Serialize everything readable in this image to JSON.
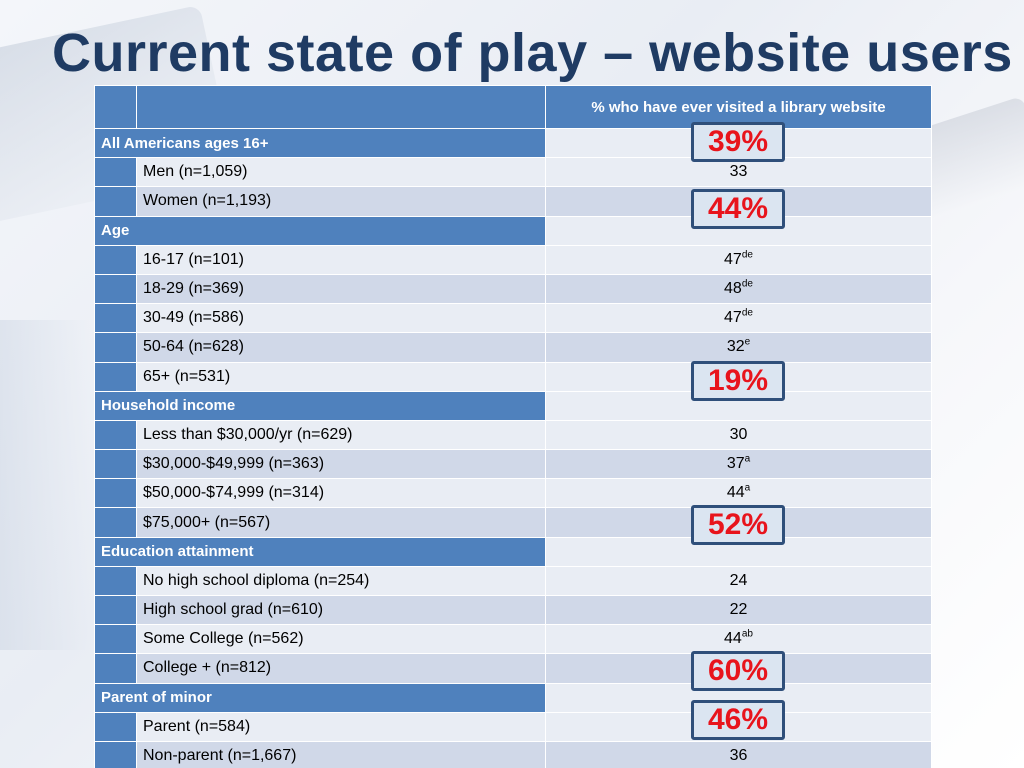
{
  "slide": {
    "title": "Current state of play – website users"
  },
  "table": {
    "column_header": "% who have ever visited a library website",
    "rows": [
      {
        "kind": "category",
        "label": "All Americans ages 16+",
        "value": ""
      },
      {
        "kind": "item",
        "label": "Men (n=1,059)",
        "value": "33",
        "sup": ""
      },
      {
        "kind": "item",
        "label": "Women (n=1,193)",
        "value": "",
        "sup": ""
      },
      {
        "kind": "category",
        "label": "Age",
        "value": ""
      },
      {
        "kind": "item",
        "label": "16-17 (n=101)",
        "value": "47",
        "sup": "de"
      },
      {
        "kind": "item",
        "label": "18-29 (n=369)",
        "value": "48",
        "sup": "de"
      },
      {
        "kind": "item",
        "label": "30-49 (n=586)",
        "value": "47",
        "sup": "de"
      },
      {
        "kind": "item",
        "label": "50-64 (n=628)",
        "value": "32",
        "sup": "e"
      },
      {
        "kind": "item",
        "label": "65+ (n=531)",
        "value": "",
        "sup": ""
      },
      {
        "kind": "category",
        "label": "Household income",
        "value": ""
      },
      {
        "kind": "item",
        "label": "Less than $30,000/yr (n=629)",
        "value": "30",
        "sup": ""
      },
      {
        "kind": "item",
        "label": "$30,000-$49,999 (n=363)",
        "value": "37",
        "sup": "a"
      },
      {
        "kind": "item",
        "label": "$50,000-$74,999 (n=314)",
        "value": "44",
        "sup": "a"
      },
      {
        "kind": "item",
        "label": "$75,000+ (n=567)",
        "value": "",
        "sup": ""
      },
      {
        "kind": "category",
        "label": "Education attainment",
        "value": ""
      },
      {
        "kind": "item",
        "label": "No high school diploma (n=254)",
        "value": "24",
        "sup": ""
      },
      {
        "kind": "item",
        "label": "High school grad (n=610)",
        "value": "22",
        "sup": ""
      },
      {
        "kind": "item",
        "label": "Some College (n=562)",
        "value": "44",
        "sup": "ab"
      },
      {
        "kind": "item",
        "label": "College + (n=812)",
        "value": "",
        "sup": ""
      },
      {
        "kind": "category",
        "label": "Parent of minor",
        "value": ""
      },
      {
        "kind": "item",
        "label": "Parent (n=584)",
        "value": "",
        "sup": ""
      },
      {
        "kind": "item",
        "label": "Non-parent (n=1,667)",
        "value": "36",
        "sup": ""
      }
    ]
  },
  "callouts": [
    {
      "text": "39%"
    },
    {
      "text": "44%"
    },
    {
      "text": "19%"
    },
    {
      "text": "52%"
    },
    {
      "text": "60%"
    },
    {
      "text": "46%"
    }
  ],
  "colors": {
    "title": "#1f3b63",
    "header_fill": "#4f81bd",
    "row_dark": "#d0d8e8",
    "row_light": "#e9edf4",
    "callout_text": "#e8141c",
    "callout_border": "#2f4f7a"
  }
}
